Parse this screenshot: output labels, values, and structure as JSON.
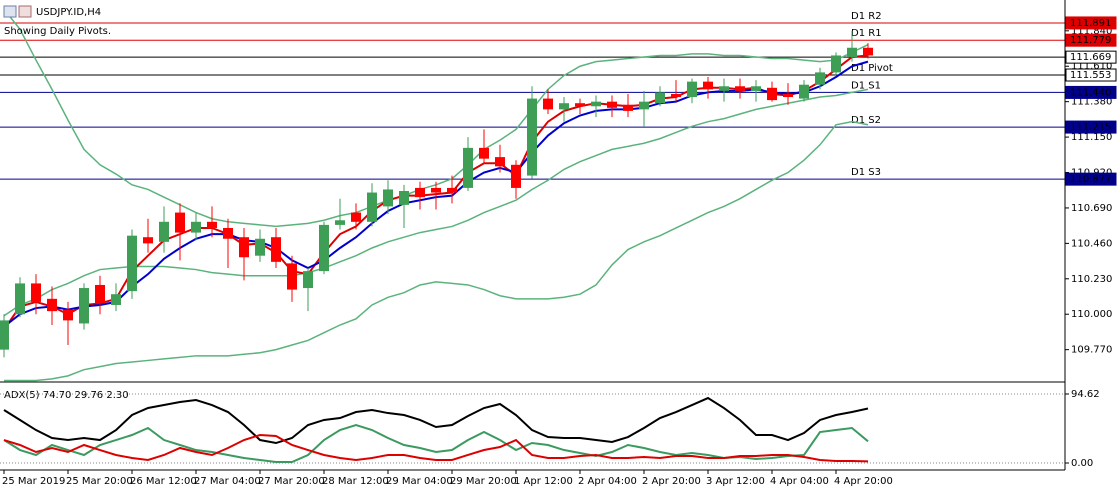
{
  "chart_data": [
    {
      "type": "candlestick",
      "title": "USDJPY.ID,H4",
      "subtitle": "Showing Daily Pivots.",
      "categories": [
        "25 Mar 2019",
        null,
        null,
        null,
        "25 Mar 20:00",
        null,
        null,
        null,
        "26 Mar 12:00",
        null,
        null,
        null,
        "27 Mar 04:00",
        null,
        null,
        null,
        "27 Mar 20:00",
        null,
        null,
        null,
        "28 Mar 12:00",
        null,
        null,
        null,
        "29 Mar 04:00",
        null,
        null,
        null,
        "29 Mar 20:00",
        null,
        null,
        null,
        "1 Apr 12:00",
        null,
        null,
        null,
        "2 Apr 04:00",
        null,
        null,
        null,
        "2 Apr 20:00",
        null,
        null,
        null,
        "3 Apr 12:00",
        null,
        null,
        null,
        "4 Apr 04:00",
        null,
        null,
        null,
        "4 Apr 20:00",
        null,
        null
      ],
      "open": [
        109.77,
        110.0,
        110.2,
        110.1,
        110.03,
        109.94,
        110.19,
        110.06,
        110.15,
        110.5,
        110.47,
        110.66,
        110.53,
        110.6,
        110.56,
        110.5,
        110.38,
        110.5,
        110.33,
        110.17,
        110.28,
        110.58,
        110.66,
        110.6,
        110.7,
        110.71,
        110.82,
        110.82,
        110.82,
        110.82,
        111.08,
        111.02,
        110.97,
        110.9,
        111.4,
        111.33,
        111.37,
        111.35,
        111.38,
        111.36,
        111.33,
        111.37,
        111.43,
        111.41,
        111.51,
        111.45,
        111.48,
        111.45,
        111.47,
        111.43,
        111.4,
        111.49,
        111.57,
        111.67,
        111.73
      ],
      "high": [
        110.0,
        110.24,
        110.26,
        110.18,
        110.08,
        110.2,
        110.25,
        110.2,
        110.55,
        110.62,
        110.7,
        110.72,
        110.66,
        110.7,
        110.62,
        110.56,
        110.55,
        110.56,
        110.38,
        110.3,
        110.6,
        110.75,
        110.72,
        110.85,
        110.87,
        110.84,
        110.86,
        110.86,
        110.9,
        111.15,
        111.2,
        111.1,
        111.0,
        111.48,
        111.46,
        111.41,
        111.4,
        111.42,
        111.42,
        111.43,
        111.45,
        111.48,
        111.52,
        111.53,
        111.54,
        111.53,
        111.53,
        111.52,
        111.51,
        111.5,
        111.52,
        111.6,
        111.7,
        111.84,
        111.76
      ],
      "low": [
        109.72,
        109.98,
        110.0,
        109.93,
        109.8,
        109.9,
        110.0,
        110.02,
        110.1,
        110.4,
        110.4,
        110.35,
        110.48,
        110.5,
        110.3,
        110.22,
        110.34,
        110.3,
        110.08,
        110.02,
        110.26,
        110.55,
        110.55,
        110.57,
        110.65,
        110.56,
        110.68,
        110.68,
        110.72,
        110.8,
        110.98,
        110.92,
        110.75,
        110.88,
        111.3,
        111.25,
        111.3,
        111.28,
        111.28,
        111.28,
        111.22,
        111.35,
        111.38,
        111.37,
        111.4,
        111.38,
        111.4,
        111.38,
        111.38,
        111.36,
        111.38,
        111.46,
        111.55,
        111.64,
        111.66
      ],
      "close": [
        109.96,
        110.2,
        110.08,
        110.02,
        109.96,
        110.17,
        110.07,
        110.13,
        110.51,
        110.46,
        110.6,
        110.53,
        110.6,
        110.56,
        110.49,
        110.37,
        110.49,
        110.34,
        110.16,
        110.28,
        110.58,
        110.61,
        110.6,
        110.79,
        110.81,
        110.8,
        110.76,
        110.79,
        110.79,
        111.08,
        111.01,
        110.96,
        110.82,
        111.4,
        111.33,
        111.37,
        111.35,
        111.38,
        111.34,
        111.32,
        111.38,
        111.44,
        111.41,
        111.51,
        111.46,
        111.48,
        111.45,
        111.48,
        111.39,
        111.41,
        111.49,
        111.57,
        111.68,
        111.73,
        111.68
      ],
      "up_color": "#3e9e56",
      "down_color": "#ff0000",
      "series": [
        {
          "color": "#5bb37c",
          "values": [
            111.98,
            111.85,
            111.65,
            111.46,
            111.26,
            111.07,
            110.97,
            110.91,
            110.84,
            110.81,
            110.76,
            110.71,
            110.66,
            110.62,
            110.6,
            110.59,
            110.58,
            110.57,
            110.58,
            110.59,
            110.61,
            110.64,
            110.66,
            110.7,
            110.74,
            110.77,
            110.81,
            110.84,
            110.88,
            110.97,
            111.07,
            111.13,
            111.2,
            111.33,
            111.46,
            111.55,
            111.61,
            111.64,
            111.65,
            111.66,
            111.67,
            111.68,
            111.68,
            111.69,
            111.69,
            111.68,
            111.68,
            111.67,
            111.66,
            111.66,
            111.65,
            111.64,
            111.65,
            111.7,
            111.75
          ]
        },
        {
          "color": "#5bb37c",
          "values": [
            109.99,
            110.06,
            110.1,
            110.16,
            110.2,
            110.25,
            110.29,
            110.3,
            110.31,
            110.31,
            110.31,
            110.3,
            110.29,
            110.27,
            110.26,
            110.25,
            110.25,
            110.25,
            110.25,
            110.27,
            110.3,
            110.34,
            110.38,
            110.43,
            110.47,
            110.5,
            110.53,
            110.55,
            110.57,
            110.61,
            110.66,
            110.7,
            110.74,
            110.81,
            110.87,
            110.94,
            110.99,
            111.03,
            111.07,
            111.09,
            111.11,
            111.14,
            111.18,
            111.22,
            111.25,
            111.27,
            111.3,
            111.33,
            111.35,
            111.37,
            111.39,
            111.41,
            111.42,
            111.44,
            111.46
          ]
        },
        {
          "color": "#5bb37c",
          "values": [
            109.57,
            109.57,
            109.57,
            109.58,
            109.6,
            109.64,
            109.66,
            109.68,
            109.69,
            109.7,
            109.71,
            109.72,
            109.73,
            109.73,
            109.73,
            109.74,
            109.75,
            109.77,
            109.8,
            109.83,
            109.88,
            109.93,
            109.97,
            110.06,
            110.11,
            110.14,
            110.19,
            110.21,
            110.2,
            110.19,
            110.16,
            110.12,
            110.1,
            110.1,
            110.1,
            110.11,
            110.13,
            110.19,
            110.32,
            110.42,
            110.47,
            110.51,
            110.56,
            110.61,
            110.66,
            110.7,
            110.75,
            110.81,
            110.87,
            110.92,
            111.0,
            111.1,
            111.23,
            111.25,
            111.23
          ]
        },
        {
          "color": "#dd0000",
          "values": [
            109.9,
            110.05,
            110.08,
            110.05,
            110.0,
            110.06,
            110.07,
            110.1,
            110.28,
            110.38,
            110.48,
            110.52,
            110.56,
            110.56,
            110.52,
            110.45,
            110.46,
            110.4,
            110.28,
            110.26,
            110.4,
            110.52,
            110.57,
            110.67,
            110.74,
            110.77,
            110.77,
            110.78,
            110.79,
            110.92,
            110.98,
            110.98,
            110.9,
            111.12,
            111.25,
            111.32,
            111.35,
            111.37,
            111.36,
            111.35,
            111.36,
            111.4,
            111.41,
            111.46,
            111.47,
            111.47,
            111.46,
            111.47,
            111.43,
            111.42,
            111.45,
            111.51,
            111.59,
            111.67,
            111.68
          ]
        },
        {
          "color": "#0000cc",
          "values": [
            109.92,
            110.0,
            110.04,
            110.05,
            110.03,
            110.05,
            110.06,
            110.08,
            110.18,
            110.26,
            110.36,
            110.43,
            110.49,
            110.52,
            110.52,
            110.48,
            110.47,
            110.43,
            110.35,
            110.3,
            110.35,
            110.43,
            110.5,
            110.59,
            110.67,
            110.72,
            110.74,
            110.76,
            110.77,
            110.86,
            110.92,
            110.95,
            110.92,
            111.05,
            111.16,
            111.24,
            111.29,
            111.32,
            111.33,
            111.33,
            111.34,
            111.37,
            111.38,
            111.42,
            111.44,
            111.45,
            111.45,
            111.46,
            111.44,
            111.43,
            111.44,
            111.48,
            111.54,
            111.61,
            111.64
          ]
        }
      ],
      "pivots": {
        "names": [
          "D1 R2",
          "D1 R1",
          "D1 Pivot",
          "D1 S1",
          "D1 S2",
          "D1 S3"
        ],
        "values": [
          111.891,
          111.779,
          111.553,
          111.44,
          111.215,
          110.877
        ],
        "value_labels": [
          "111.891",
          "111.779",
          "111.553",
          "111.440",
          "111.215",
          "110.877"
        ],
        "colors": [
          "#dd0000",
          "#dd0000",
          "#000000",
          "#00008b",
          "#00008b",
          "#00008b"
        ]
      },
      "last_price": 111.669,
      "ylim": [
        109.56,
        112.04
      ],
      "yticks": [
        {
          "value": 111.84,
          "label": "111.840"
        },
        {
          "value": 111.61,
          "label": "111.610"
        },
        {
          "value": 111.38,
          "label": "111.380"
        },
        {
          "value": 111.15,
          "label": "111.150"
        },
        {
          "value": 110.92,
          "label": "110.920"
        },
        {
          "value": 110.69,
          "label": "110.690"
        },
        {
          "value": 110.46,
          "label": "110.460"
        },
        {
          "value": 110.23,
          "label": "110.230"
        },
        {
          "value": 110.0,
          "label": "110.000"
        },
        {
          "value": 109.77,
          "label": "109.770"
        }
      ]
    },
    {
      "type": "line",
      "title": "ADX(5) 74.70 29.76 2.30",
      "series": [
        {
          "color": "#000000",
          "values": [
            72.7,
            59.0,
            45.2,
            34.3,
            31.5,
            34.3,
            31.5,
            45.2,
            65.8,
            75.4,
            79.5,
            83.6,
            86.4,
            79.5,
            69.9,
            52.1,
            31.5,
            27.4,
            34.3,
            52.1,
            59.0,
            61.7,
            69.9,
            72.7,
            68.5,
            65.8,
            59.0,
            49.4,
            52.1,
            64.4,
            75.4,
            80.9,
            65.8,
            45.2,
            35.6,
            34.3,
            34.3,
            31.5,
            28.8,
            35.6,
            48.0,
            61.7,
            69.9,
            79.5,
            89.1,
            75.4,
            59.0,
            38.4,
            38.4,
            31.5,
            41.1,
            59.0,
            65.8,
            70.0,
            74.7
          ]
        },
        {
          "color": "#3b9a5f",
          "values": [
            31.5,
            17.8,
            11.0,
            24.7,
            17.8,
            11.0,
            24.7,
            31.5,
            38.4,
            48.0,
            31.5,
            24.7,
            17.8,
            15.1,
            11.0,
            6.9,
            4.1,
            1.4,
            1.4,
            11.0,
            31.5,
            45.2,
            52.1,
            45.2,
            34.3,
            24.7,
            20.6,
            15.1,
            17.8,
            31.5,
            42.5,
            31.5,
            17.8,
            27.4,
            24.7,
            17.8,
            13.7,
            9.6,
            15.1,
            24.7,
            20.6,
            15.1,
            11.0,
            13.7,
            11.0,
            6.9,
            8.2,
            5.5,
            6.9,
            9.6,
            11.0,
            42.5,
            45.2,
            48.0,
            29.76
          ]
        },
        {
          "color": "#dd0000",
          "values": [
            31.5,
            24.7,
            15.1,
            20.6,
            15.1,
            24.7,
            17.8,
            11.0,
            6.9,
            4.1,
            11.0,
            20.6,
            15.1,
            11.0,
            20.6,
            31.5,
            38.4,
            37.0,
            24.7,
            17.8,
            11.0,
            6.9,
            4.1,
            6.9,
            11.0,
            11.0,
            6.9,
            4.1,
            4.1,
            11.0,
            17.8,
            21.9,
            31.5,
            11.0,
            6.9,
            6.9,
            9.6,
            11.0,
            6.9,
            6.9,
            8.2,
            6.9,
            9.6,
            9.6,
            6.9,
            6.9,
            9.6,
            9.6,
            11.0,
            11.0,
            8.2,
            4.1,
            2.7,
            2.7,
            2.3
          ]
        }
      ],
      "ylim": [
        -9.6,
        105.6
      ],
      "yticks": [
        94.62,
        {
          "value": 0,
          "label": "0.00"
        }
      ]
    }
  ]
}
